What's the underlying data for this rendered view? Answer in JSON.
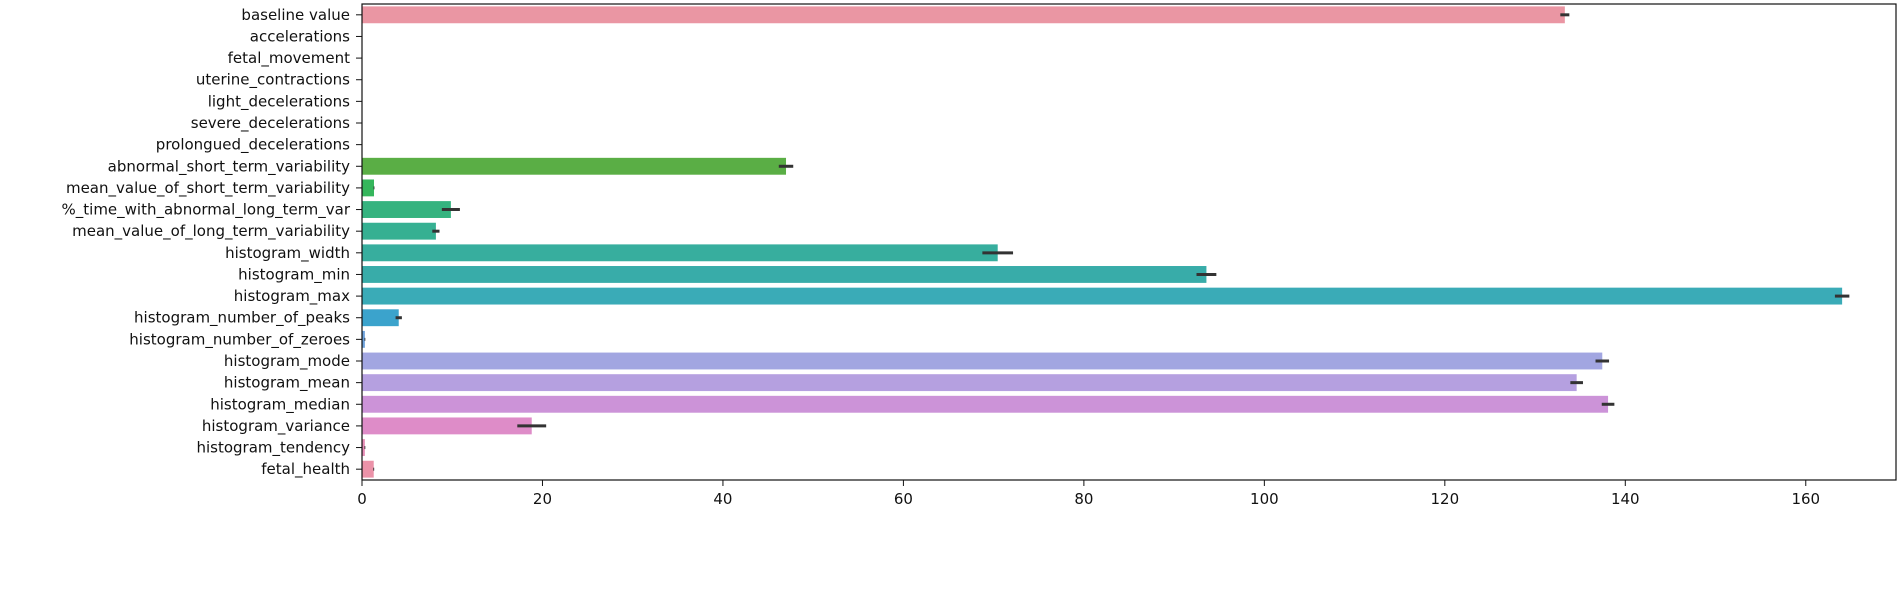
{
  "chart_data": {
    "type": "bar",
    "orientation": "horizontal",
    "title": "",
    "xlabel": "",
    "ylabel": "",
    "xlim": [
      0,
      170
    ],
    "xticks": [
      0,
      20,
      40,
      60,
      80,
      100,
      120,
      140,
      160
    ],
    "xtick_labels": [
      "0",
      "20",
      "40",
      "60",
      "80",
      "100",
      "120",
      "140",
      "160"
    ],
    "grid": false,
    "legend": "none",
    "error_bar_color": "#333333",
    "categories": [
      "baseline value",
      "accelerations",
      "fetal_movement",
      "uterine_contractions",
      "light_decelerations",
      "severe_decelerations",
      "prolongued_decelerations",
      "abnormal_short_term_variability",
      "mean_value_of_short_term_variability",
      "%_time_with_abnormal_long_term_var",
      "mean_value_of_long_term_variability",
      "histogram_width",
      "histogram_min",
      "histogram_max",
      "histogram_number_of_peaks",
      "histogram_number_of_zeroes",
      "histogram_mode",
      "histogram_mean",
      "histogram_median",
      "histogram_variance",
      "histogram_tendency",
      "fetal_health"
    ],
    "values": [
      133.3,
      0.003,
      0.009,
      0.004,
      0.002,
      0.0,
      0.0,
      46.99,
      1.33,
      9.85,
      8.19,
      70.45,
      93.58,
      164.03,
      4.07,
      0.32,
      137.45,
      134.61,
      138.09,
      18.81,
      0.32,
      1.3
    ],
    "errors": [
      0.5,
      0.0,
      0.0,
      0.0,
      0.0,
      0.0,
      0.0,
      0.8,
      0.05,
      1.0,
      0.4,
      1.7,
      1.1,
      0.8,
      0.35,
      0.05,
      0.75,
      0.7,
      0.7,
      1.6,
      0.05,
      0.05
    ],
    "colors": [
      "#ea96a3",
      "#e59a70",
      "#d6a34c",
      "#c4aa43",
      "#b0b042",
      "#9ab442",
      "#7db545",
      "#5aae45",
      "#35b65c",
      "#35b37f",
      "#36b092",
      "#37ae9e",
      "#38aca9",
      "#3aabb7",
      "#3ba3cc",
      "#6fa3dd",
      "#a2a6e1",
      "#b5a0e0",
      "#cc93d8",
      "#de8cc8",
      "#e78fb8",
      "#eb92a8"
    ]
  }
}
